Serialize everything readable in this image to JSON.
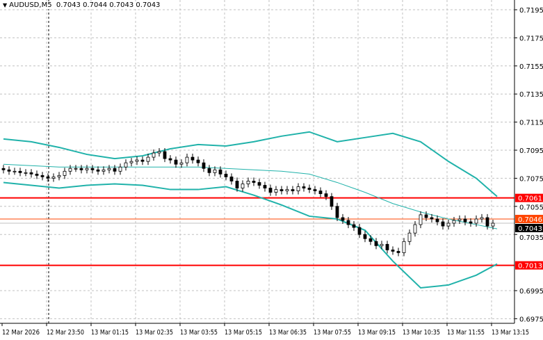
{
  "header": {
    "symbol": "AUDUSD,M5",
    "ohlc": "0.7043 0.7044 0.7043 0.7043",
    "menu_icon": "triangle-down-icon"
  },
  "chart_data": {
    "type": "candlestick",
    "title": "AUDUSD,M5",
    "ylim": [
      0.6965,
      0.7205
    ],
    "y_ticks": [
      "0.7195",
      "0.7175",
      "0.7155",
      "0.7135",
      "0.7115",
      "0.7095",
      "0.7075",
      "0.7055",
      "0.7035",
      "0.6995",
      "0.6975"
    ],
    "x_ticks": [
      "12 Mar 2026",
      "12 Mar 23:50",
      "13 Mar 01:15",
      "13 Mar 02:35",
      "13 Mar 03:55",
      "13 Mar 05:15",
      "13 Mar 06:35",
      "13 Mar 07:55",
      "13 Mar 09:15",
      "13 Mar 10:35",
      "13 Mar 11:55",
      "13 Mar 13:15"
    ],
    "grid": true,
    "closes": [
      0.7081,
      0.708,
      0.708,
      0.7079,
      0.7079,
      0.7078,
      0.7077,
      0.7076,
      0.7075,
      0.7076,
      0.7077,
      0.708,
      0.7082,
      0.7082,
      0.7081,
      0.7082,
      0.7081,
      0.708,
      0.7081,
      0.7082,
      0.708,
      0.7083,
      0.7086,
      0.7087,
      0.7088,
      0.7087,
      0.709,
      0.7093,
      0.7094,
      0.7089,
      0.7088,
      0.7085,
      0.7086,
      0.709,
      0.7088,
      0.7086,
      0.7082,
      0.7079,
      0.7081,
      0.7078,
      0.7076,
      0.7073,
      0.7068,
      0.7071,
      0.7073,
      0.7072,
      0.707,
      0.7068,
      0.7065,
      0.7067,
      0.7066,
      0.7067,
      0.7066,
      0.7069,
      0.7068,
      0.7067,
      0.7066,
      0.7064,
      0.7062,
      0.7055,
      0.7047,
      0.7045,
      0.7042,
      0.704,
      0.7035,
      0.7032,
      0.703,
      0.7027,
      0.7028,
      0.7024,
      0.7023,
      0.7022,
      0.703,
      0.7036,
      0.7042,
      0.7049,
      0.7047,
      0.7046,
      0.7044,
      0.7041,
      0.7043,
      0.7045,
      0.7046,
      0.7044,
      0.7043,
      0.7046,
      0.7047,
      0.7041,
      0.7043
    ],
    "bollinger": {
      "sample_every_candles": 5,
      "upper": [
        0.7103,
        0.7101,
        0.7097,
        0.7092,
        0.7089,
        0.7091,
        0.7096,
        0.7099,
        0.7098,
        0.7101,
        0.7105,
        0.7108,
        0.7101,
        0.7104,
        0.7107,
        0.7101,
        0.7087,
        0.7075,
        0.7062
      ],
      "middle": [
        0.7085,
        0.7084,
        0.7083,
        0.7083,
        0.7083,
        0.7083,
        0.7083,
        0.7083,
        0.7082,
        0.7081,
        0.708,
        0.7078,
        0.7072,
        0.7065,
        0.7057,
        0.7051,
        0.7046,
        0.7042,
        0.7039
      ],
      "lower": [
        0.7072,
        0.707,
        0.7068,
        0.707,
        0.7071,
        0.707,
        0.7067,
        0.7067,
        0.7069,
        0.7063,
        0.7056,
        0.7048,
        0.7046,
        0.7038,
        0.7016,
        0.6997,
        0.6999,
        0.7006,
        0.7014
      ]
    },
    "levels": [
      {
        "price": 0.7061,
        "label": "0.7061",
        "color": "#ff0000"
      },
      {
        "price": 0.7013,
        "label": "0.7013",
        "color": "#ff0000"
      },
      {
        "price": 0.7046,
        "label": "0.7046",
        "color": "#ff4500"
      },
      {
        "price": 0.7043,
        "label": "0.7043",
        "color": "#000000",
        "bid": true
      }
    ],
    "colors": {
      "band": "#20b2aa",
      "candle": "#000000",
      "grid": "#c0c0c0"
    }
  }
}
